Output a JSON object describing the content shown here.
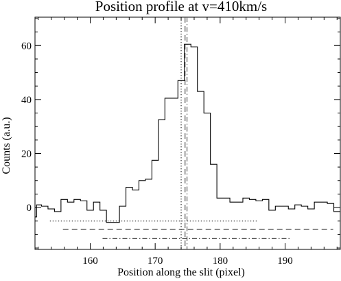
{
  "chart_data": {
    "type": "line",
    "title": "Position profile at v=410km/s",
    "xlabel": "Position along the slit (pixel)",
    "ylabel": "Counts (a.u.)",
    "xlim": [
      151.5,
      198.5
    ],
    "ylim": [
      -15.5,
      70.5
    ],
    "x_ticks": [
      160,
      170,
      180,
      190
    ],
    "y_ticks": [
      0,
      20,
      40,
      60
    ],
    "x_minor_step": 2,
    "y_minor_step": 5,
    "grid": false,
    "legend": "none",
    "series": [
      {
        "style": "steps-mid",
        "x": [
          151.5,
          152,
          153,
          154,
          155,
          156,
          157,
          158,
          159,
          160,
          161,
          162,
          163,
          164,
          165,
          166,
          167,
          168,
          169,
          170,
          171,
          172,
          173,
          174,
          175,
          176,
          177,
          178,
          179,
          180,
          181,
          182,
          183,
          184,
          185,
          186,
          187,
          188,
          189,
          190,
          191,
          192,
          193,
          194,
          195,
          196,
          197,
          198
        ],
        "y": [
          -3.5,
          1.0,
          0.5,
          -0.5,
          -1.5,
          3.0,
          2.0,
          3.0,
          2.5,
          -1.0,
          2.0,
          -1.0,
          -5.5,
          -5.5,
          0.5,
          7.5,
          6.5,
          10.0,
          10.5,
          17.5,
          32.5,
          40.5,
          40.5,
          47.0,
          60.5,
          59.5,
          43.0,
          35.0,
          16.0,
          3.5,
          3.5,
          2.0,
          2.0,
          3.5,
          3.0,
          2.5,
          3.0,
          -1.0,
          0.5,
          0.5,
          -0.5,
          1.0,
          0.5,
          -0.5,
          2.0,
          2.0,
          1.5,
          -1.5
        ]
      }
    ],
    "markers": [
      {
        "kind": "vertical",
        "x": 174.0,
        "style": "dotted"
      },
      {
        "kind": "vertical",
        "x": 174.6,
        "style": "dashed"
      },
      {
        "kind": "vertical",
        "x": 174.9,
        "style": "dash-dot"
      },
      {
        "kind": "horizontal",
        "y": -5.0,
        "x_from": 153.8,
        "x_to": 185.9,
        "style": "dotted"
      },
      {
        "kind": "horizontal",
        "y": -8.0,
        "x_from": 155.8,
        "x_to": 197.4,
        "style": "dashed"
      },
      {
        "kind": "horizontal",
        "y": -11.5,
        "x_from": 161.9,
        "x_to": 191.0,
        "style": "dash-dot"
      }
    ]
  },
  "colors": {
    "background": "#ffffff",
    "ink": "#000000",
    "marker_gray": "#555555"
  }
}
